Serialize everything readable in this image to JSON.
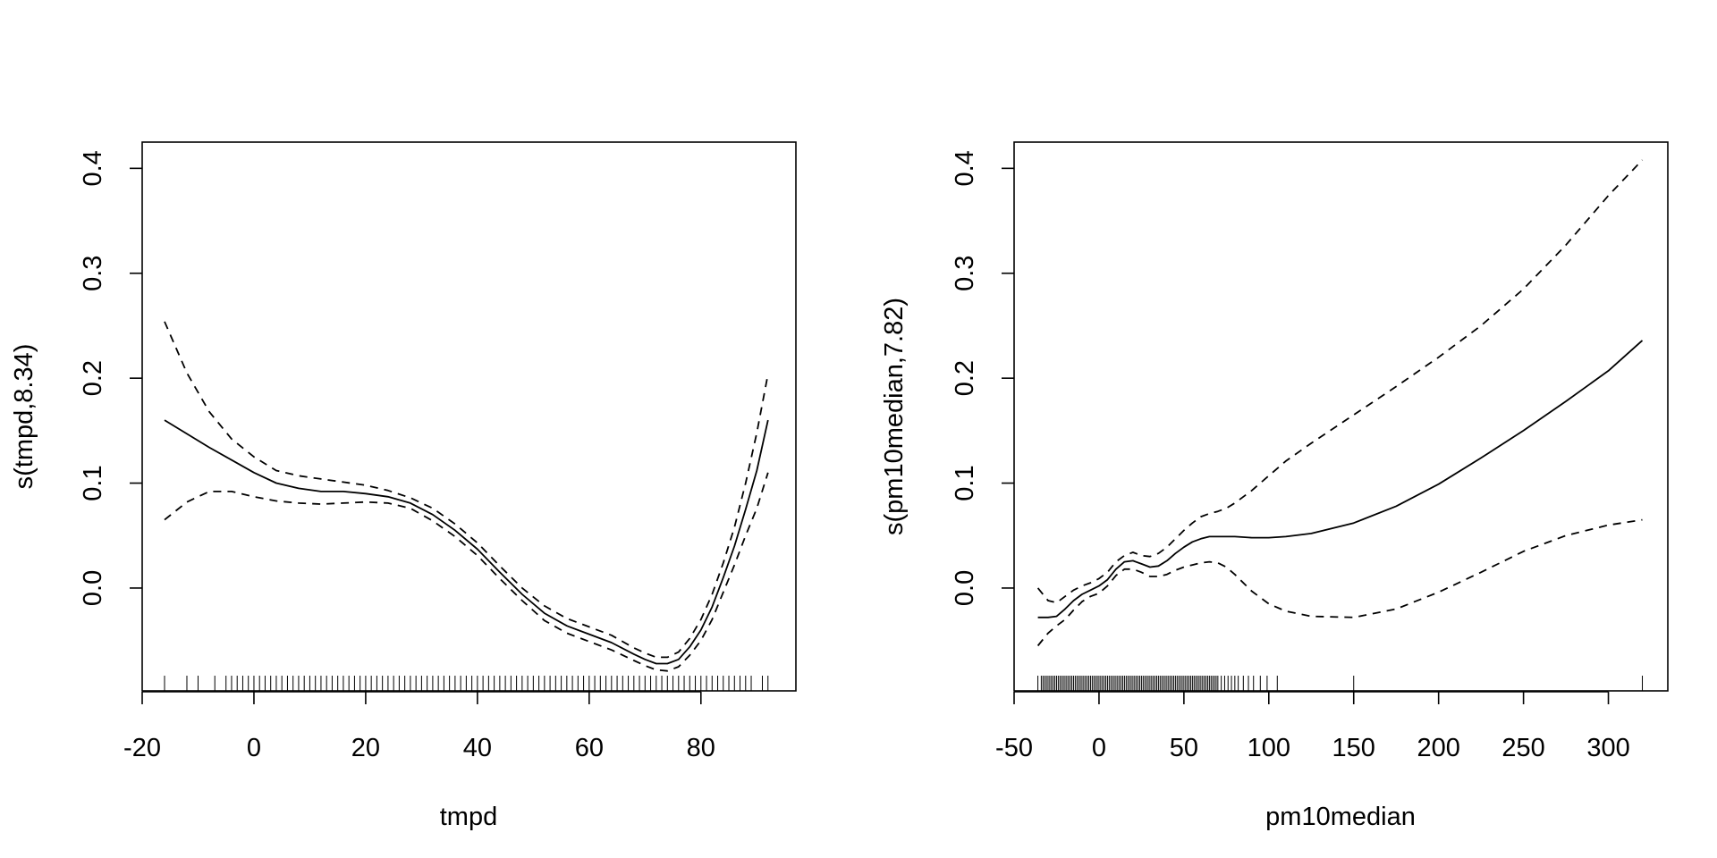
{
  "chart_data": [
    {
      "type": "line",
      "xlabel": "tmpd",
      "ylabel": "s(tmpd,8.34)",
      "xlim": [
        -20,
        97
      ],
      "ylim": [
        -0.098,
        0.425
      ],
      "x_ticks": [
        -20,
        0,
        20,
        40,
        60,
        80
      ],
      "x_tick_labels": [
        "-20",
        "0",
        "20",
        "40",
        "60",
        "80"
      ],
      "y_ticks": [
        0.0,
        0.1,
        0.2,
        0.3,
        0.4
      ],
      "y_tick_labels": [
        "0.0",
        "0.1",
        "0.2",
        "0.3",
        "0.4"
      ],
      "series": [
        {
          "name": "fit",
          "style": "solid",
          "x": [
            -16,
            -12,
            -8,
            -4,
            0,
            4,
            8,
            12,
            16,
            20,
            24,
            28,
            32,
            36,
            40,
            44,
            48,
            52,
            56,
            60,
            64,
            68,
            70,
            72,
            74,
            76,
            78,
            80,
            82,
            84,
            86,
            88,
            90,
            92
          ],
          "y": [
            0.16,
            0.147,
            0.134,
            0.122,
            0.11,
            0.1,
            0.095,
            0.092,
            0.092,
            0.09,
            0.087,
            0.081,
            0.07,
            0.055,
            0.037,
            0.015,
            -0.006,
            -0.024,
            -0.036,
            -0.044,
            -0.052,
            -0.063,
            -0.068,
            -0.072,
            -0.072,
            -0.068,
            -0.056,
            -0.04,
            -0.018,
            0.01,
            0.04,
            0.075,
            0.112,
            0.16
          ]
        },
        {
          "name": "upper",
          "style": "dashed",
          "x": [
            -16,
            -12,
            -8,
            -4,
            0,
            4,
            8,
            12,
            16,
            20,
            24,
            28,
            32,
            36,
            40,
            44,
            48,
            52,
            56,
            60,
            64,
            68,
            70,
            72,
            74,
            76,
            78,
            80,
            82,
            84,
            86,
            88,
            90,
            92
          ],
          "y": [
            0.254,
            0.205,
            0.168,
            0.142,
            0.125,
            0.112,
            0.107,
            0.104,
            0.101,
            0.098,
            0.093,
            0.086,
            0.076,
            0.061,
            0.043,
            0.021,
            0.0,
            -0.017,
            -0.029,
            -0.037,
            -0.045,
            -0.057,
            -0.062,
            -0.066,
            -0.066,
            -0.061,
            -0.048,
            -0.03,
            -0.006,
            0.024,
            0.058,
            0.1,
            0.148,
            0.204
          ]
        },
        {
          "name": "lower",
          "style": "dashed",
          "x": [
            -16,
            -12,
            -8,
            -4,
            0,
            4,
            8,
            12,
            16,
            20,
            24,
            28,
            32,
            36,
            40,
            44,
            48,
            52,
            56,
            60,
            64,
            68,
            70,
            72,
            74,
            76,
            78,
            80,
            82,
            84,
            86,
            88,
            90,
            92
          ],
          "y": [
            0.065,
            0.082,
            0.092,
            0.092,
            0.087,
            0.083,
            0.081,
            0.08,
            0.081,
            0.082,
            0.081,
            0.076,
            0.064,
            0.049,
            0.031,
            0.009,
            -0.012,
            -0.031,
            -0.043,
            -0.051,
            -0.059,
            -0.069,
            -0.074,
            -0.078,
            -0.079,
            -0.075,
            -0.064,
            -0.05,
            -0.03,
            -0.004,
            0.022,
            0.05,
            0.076,
            0.11
          ]
        }
      ],
      "rug": [
        -16,
        -12,
        -10,
        -7,
        -5,
        -4,
        -3,
        -2,
        -1,
        0,
        1,
        2,
        3,
        4,
        5,
        6,
        7,
        8,
        9,
        10,
        11,
        12,
        13,
        14,
        15,
        16,
        17,
        18,
        19,
        20,
        21,
        22,
        23,
        24,
        25,
        26,
        27,
        28,
        29,
        30,
        31,
        32,
        33,
        34,
        35,
        36,
        37,
        38,
        39,
        40,
        41,
        42,
        43,
        44,
        45,
        46,
        47,
        48,
        49,
        50,
        51,
        52,
        53,
        54,
        55,
        56,
        57,
        58,
        59,
        60,
        61,
        62,
        63,
        64,
        65,
        66,
        67,
        68,
        69,
        70,
        71,
        72,
        73,
        74,
        75,
        76,
        77,
        78,
        79,
        80,
        81,
        82,
        83,
        84,
        85,
        86,
        87,
        88,
        89,
        91,
        92
      ]
    },
    {
      "type": "line",
      "xlabel": "pm10median",
      "ylabel": "s(pm10median,7.82)",
      "xlim": [
        -50,
        335
      ],
      "ylim": [
        -0.098,
        0.425
      ],
      "x_ticks": [
        -50,
        0,
        50,
        100,
        150,
        200,
        250,
        300
      ],
      "x_tick_labels": [
        "-50",
        "0",
        "50",
        "100",
        "150",
        "200",
        "250",
        "300"
      ],
      "y_ticks": [
        0.0,
        0.1,
        0.2,
        0.3,
        0.4
      ],
      "y_tick_labels": [
        "0.0",
        "0.1",
        "0.2",
        "0.3",
        "0.4"
      ],
      "series": [
        {
          "name": "fit",
          "style": "solid",
          "x": [
            -36,
            -30,
            -25,
            -20,
            -15,
            -10,
            -5,
            0,
            5,
            10,
            15,
            20,
            25,
            30,
            35,
            40,
            45,
            50,
            55,
            60,
            65,
            70,
            75,
            80,
            90,
            100,
            110,
            125,
            150,
            175,
            200,
            225,
            250,
            275,
            300,
            320
          ],
          "y": [
            -0.028,
            -0.028,
            -0.027,
            -0.02,
            -0.012,
            -0.006,
            -0.002,
            0.002,
            0.008,
            0.018,
            0.025,
            0.026,
            0.023,
            0.02,
            0.021,
            0.026,
            0.033,
            0.039,
            0.044,
            0.047,
            0.049,
            0.049,
            0.049,
            0.049,
            0.048,
            0.048,
            0.049,
            0.052,
            0.062,
            0.078,
            0.099,
            0.124,
            0.15,
            0.178,
            0.207,
            0.236
          ]
        },
        {
          "name": "upper",
          "style": "dashed",
          "x": [
            -36,
            -30,
            -25,
            -20,
            -15,
            -10,
            -5,
            0,
            5,
            10,
            15,
            20,
            25,
            30,
            35,
            40,
            45,
            50,
            55,
            60,
            65,
            70,
            75,
            80,
            90,
            100,
            110,
            125,
            150,
            175,
            200,
            225,
            250,
            275,
            300,
            320
          ],
          "y": [
            0.0,
            -0.012,
            -0.014,
            -0.008,
            -0.002,
            0.002,
            0.005,
            0.009,
            0.015,
            0.025,
            0.031,
            0.034,
            0.031,
            0.03,
            0.033,
            0.039,
            0.047,
            0.055,
            0.062,
            0.068,
            0.071,
            0.073,
            0.076,
            0.081,
            0.093,
            0.107,
            0.121,
            0.138,
            0.165,
            0.192,
            0.22,
            0.25,
            0.285,
            0.327,
            0.374,
            0.408
          ]
        },
        {
          "name": "lower",
          "style": "dashed",
          "x": [
            -36,
            -30,
            -25,
            -20,
            -15,
            -10,
            -5,
            0,
            5,
            10,
            15,
            20,
            25,
            30,
            35,
            40,
            45,
            50,
            55,
            60,
            65,
            70,
            75,
            80,
            90,
            100,
            110,
            125,
            150,
            175,
            200,
            225,
            250,
            275,
            300,
            320
          ],
          "y": [
            -0.055,
            -0.043,
            -0.036,
            -0.03,
            -0.021,
            -0.013,
            -0.008,
            -0.005,
            0.002,
            0.012,
            0.018,
            0.018,
            0.015,
            0.011,
            0.011,
            0.013,
            0.017,
            0.02,
            0.022,
            0.024,
            0.025,
            0.024,
            0.02,
            0.013,
            -0.003,
            -0.015,
            -0.022,
            -0.027,
            -0.028,
            -0.02,
            -0.004,
            0.015,
            0.035,
            0.05,
            0.06,
            0.065
          ]
        }
      ],
      "rug": [
        -36,
        -34,
        -33,
        -32,
        -31,
        -30,
        -29,
        -28,
        -27,
        -26,
        -25,
        -24,
        -23,
        -22,
        -21,
        -20,
        -19,
        -18,
        -17,
        -16,
        -15,
        -14,
        -13,
        -12,
        -11,
        -10,
        -9,
        -8,
        -7,
        -6,
        -5,
        -4,
        -3,
        -2,
        -1,
        0,
        1,
        2,
        3,
        4,
        5,
        6,
        7,
        8,
        9,
        10,
        11,
        12,
        13,
        14,
        15,
        16,
        17,
        18,
        19,
        20,
        21,
        22,
        23,
        24,
        25,
        26,
        27,
        28,
        29,
        30,
        31,
        32,
        33,
        34,
        35,
        36,
        37,
        38,
        39,
        40,
        41,
        42,
        43,
        44,
        45,
        46,
        47,
        48,
        49,
        50,
        51,
        52,
        53,
        54,
        55,
        56,
        57,
        58,
        59,
        60,
        61,
        62,
        63,
        64,
        65,
        66,
        67,
        68,
        69,
        70,
        72,
        74,
        76,
        78,
        80,
        82,
        85,
        88,
        91,
        95,
        99,
        105,
        150,
        320
      ]
    }
  ]
}
